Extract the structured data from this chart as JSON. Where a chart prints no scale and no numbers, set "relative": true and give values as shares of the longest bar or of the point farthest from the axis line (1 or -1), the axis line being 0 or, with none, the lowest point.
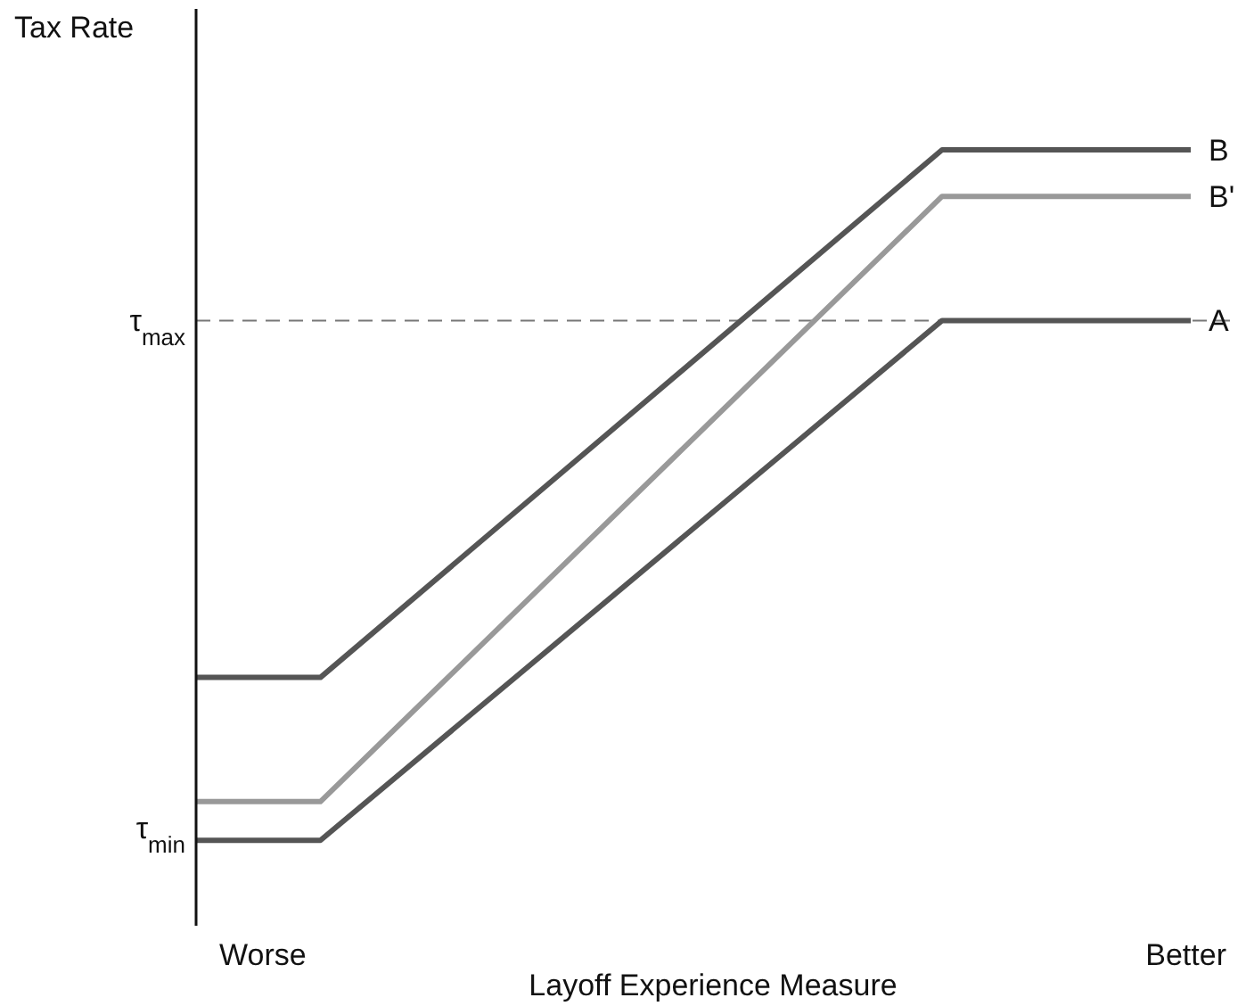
{
  "chart_data": {
    "type": "line",
    "relative": true,
    "xlabel": "Layoff Experience Measure",
    "ylabel": "Tax Rate",
    "categories": [
      null,
      null,
      null,
      null,
      null,
      null,
      null,
      null,
      null
    ],
    "series": [
      {
        "name": "B",
        "color": "#555555",
        "values": [
          0.32,
          0.32,
          null,
          null,
          null,
          null,
          1,
          1,
          1
        ]
      },
      {
        "name": "B'",
        "color": "#999999",
        "values": [
          0.16,
          0.16,
          null,
          null,
          null,
          null,
          0.94,
          0.94,
          0.94
        ]
      },
      {
        "name": "A",
        "color": "#555555",
        "values": [
          0.11,
          0.11,
          null,
          null,
          null,
          null,
          0.78,
          0.78,
          0.78
        ]
      }
    ],
    "annotations": [
      "Worse",
      "Better",
      "τ$_{min}$"
    ],
    "ref_lines": [
      {
        "axis": "y",
        "value": 0.78,
        "label": "τ$_{max}$",
        "color": "#777777",
        "line_style": "dashed"
      }
    ],
    "marker": "none",
    "line_style": "solid"
  }
}
